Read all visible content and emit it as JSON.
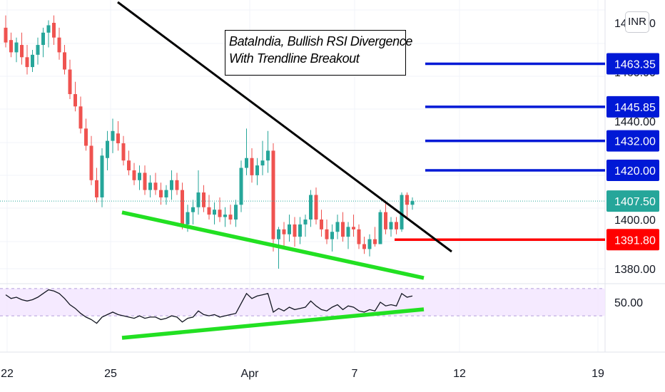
{
  "currency_button": "INR",
  "annotation": {
    "line1": "BataIndia, Bullish RSI Divergence",
    "line2": "With Trendline Breakout"
  },
  "price_axis": {
    "ticks": [
      "1380.00",
      "1400.00",
      "1420.00",
      "1440.00",
      "1460.00",
      "1480.00"
    ]
  },
  "rsi_axis": {
    "ticks": [
      "50.00"
    ]
  },
  "time_axis": {
    "ticks": [
      "22",
      "25",
      "Apr",
      "7",
      "12",
      "19"
    ]
  },
  "levels": [
    {
      "value": 1463.35,
      "label": "1463.35",
      "color": "#0019d6"
    },
    {
      "value": 1445.85,
      "label": "1445.85",
      "color": "#0019d6"
    },
    {
      "value": 1432.0,
      "label": "1432.00",
      "color": "#0019d6"
    },
    {
      "value": 1420.0,
      "label": "1420.00",
      "color": "#0019d6"
    },
    {
      "value": 1391.8,
      "label": "1391.80",
      "color": "#ff0000"
    }
  ],
  "last_price": {
    "value": 1407.5,
    "label": "1407.50",
    "color": "#26a69a"
  },
  "chart_data": {
    "type": "candlestick",
    "y_range": [
      1372,
      1481
    ],
    "up_color": "#26a69a",
    "down_color": "#ef5350",
    "candles": [
      [
        1478,
        1483,
        1470,
        1472
      ],
      [
        1473,
        1476,
        1466,
        1468
      ],
      [
        1468,
        1474,
        1464,
        1472
      ],
      [
        1471,
        1476,
        1463,
        1466
      ],
      [
        1466,
        1471,
        1459,
        1462
      ],
      [
        1462,
        1469,
        1460,
        1467
      ],
      [
        1467,
        1474,
        1463,
        1471
      ],
      [
        1471,
        1478,
        1466,
        1476
      ],
      [
        1476,
        1481,
        1470,
        1479
      ],
      [
        1480,
        1483,
        1471,
        1474
      ],
      [
        1474,
        1478,
        1465,
        1468
      ],
      [
        1468,
        1471,
        1459,
        1461
      ],
      [
        1461,
        1465,
        1449,
        1451
      ],
      [
        1451,
        1456,
        1444,
        1446
      ],
      [
        1446,
        1450,
        1435,
        1437
      ],
      [
        1437,
        1441,
        1428,
        1430
      ],
      [
        1430,
        1434,
        1414,
        1416
      ],
      [
        1416,
        1421,
        1407,
        1409
      ],
      [
        1409,
        1429,
        1405,
        1426
      ],
      [
        1425,
        1436,
        1420,
        1432
      ],
      [
        1432,
        1441,
        1427,
        1436
      ],
      [
        1435,
        1440,
        1428,
        1431
      ],
      [
        1431,
        1434,
        1422,
        1424
      ],
      [
        1424,
        1428,
        1418,
        1420
      ],
      [
        1420,
        1423,
        1414,
        1416
      ],
      [
        1416,
        1422,
        1412,
        1419
      ],
      [
        1419,
        1422,
        1410,
        1412
      ],
      [
        1412,
        1418,
        1409,
        1415
      ],
      [
        1415,
        1419,
        1410,
        1412
      ],
      [
        1412,
        1415,
        1406,
        1409
      ],
      [
        1409,
        1414,
        1406,
        1412
      ],
      [
        1412,
        1420,
        1408,
        1416
      ],
      [
        1416,
        1419,
        1410,
        1412
      ],
      [
        1412,
        1415,
        1396,
        1398
      ],
      [
        1398,
        1406,
        1395,
        1403
      ],
      [
        1403,
        1408,
        1398,
        1405
      ],
      [
        1405,
        1420,
        1402,
        1411
      ],
      [
        1411,
        1414,
        1403,
        1405
      ],
      [
        1405,
        1410,
        1400,
        1402
      ],
      [
        1402,
        1407,
        1398,
        1404
      ],
      [
        1404,
        1409,
        1399,
        1401
      ],
      [
        1401,
        1405,
        1397,
        1402
      ],
      [
        1402,
        1406,
        1398,
        1400
      ],
      [
        1400,
        1408,
        1397,
        1406
      ],
      [
        1406,
        1424,
        1403,
        1421
      ],
      [
        1421,
        1437,
        1418,
        1425
      ],
      [
        1425,
        1429,
        1415,
        1418
      ],
      [
        1418,
        1425,
        1414,
        1422
      ],
      [
        1422,
        1432,
        1418,
        1424
      ],
      [
        1424,
        1436,
        1419,
        1428
      ],
      [
        1428,
        1431,
        1387,
        1392
      ],
      [
        1392,
        1397,
        1380,
        1396
      ],
      [
        1396,
        1399,
        1389,
        1394
      ],
      [
        1394,
        1402,
        1391,
        1398
      ],
      [
        1398,
        1401,
        1389,
        1393
      ],
      [
        1393,
        1401,
        1390,
        1398
      ],
      [
        1398,
        1402,
        1393,
        1400
      ],
      [
        1400,
        1412,
        1397,
        1410
      ],
      [
        1410,
        1413,
        1398,
        1400
      ],
      [
        1400,
        1404,
        1393,
        1396
      ],
      [
        1396,
        1400,
        1390,
        1392
      ],
      [
        1392,
        1398,
        1387,
        1395
      ],
      [
        1395,
        1402,
        1392,
        1399
      ],
      [
        1399,
        1403,
        1391,
        1393
      ],
      [
        1393,
        1399,
        1388,
        1397
      ],
      [
        1397,
        1402,
        1393,
        1396
      ],
      [
        1396,
        1398,
        1388,
        1390
      ],
      [
        1390,
        1393,
        1386,
        1388
      ],
      [
        1388,
        1394,
        1385,
        1392
      ],
      [
        1392,
        1397,
        1389,
        1390
      ],
      [
        1390,
        1404,
        1390,
        1403
      ],
      [
        1403,
        1407,
        1394,
        1396
      ],
      [
        1396,
        1401,
        1393,
        1399
      ],
      [
        1399,
        1401,
        1394,
        1396
      ],
      [
        1396,
        1411,
        1395,
        1410
      ],
      [
        1410,
        1411,
        1401,
        1406
      ],
      [
        1406,
        1409,
        1404,
        1407.5
      ]
    ],
    "rsi": [
      56,
      53,
      54,
      52,
      51,
      52,
      54,
      57,
      60,
      59,
      57,
      53,
      48,
      45,
      41,
      38,
      36,
      33,
      38,
      40,
      42,
      40,
      39,
      38,
      37,
      39,
      37,
      38,
      38,
      36,
      37,
      39,
      38,
      34,
      37,
      38,
      43,
      40,
      39,
      40,
      38,
      39,
      40,
      41,
      49,
      57,
      53,
      55,
      56,
      57,
      42,
      45,
      43,
      46,
      44,
      45,
      46,
      51,
      47,
      44,
      43,
      46,
      48,
      44,
      47,
      46,
      43,
      42,
      44,
      43,
      50,
      47,
      48,
      47,
      57,
      54,
      55
    ],
    "rsi_range": [
      22,
      67
    ],
    "rsi_band": [
      40,
      60
    ]
  }
}
